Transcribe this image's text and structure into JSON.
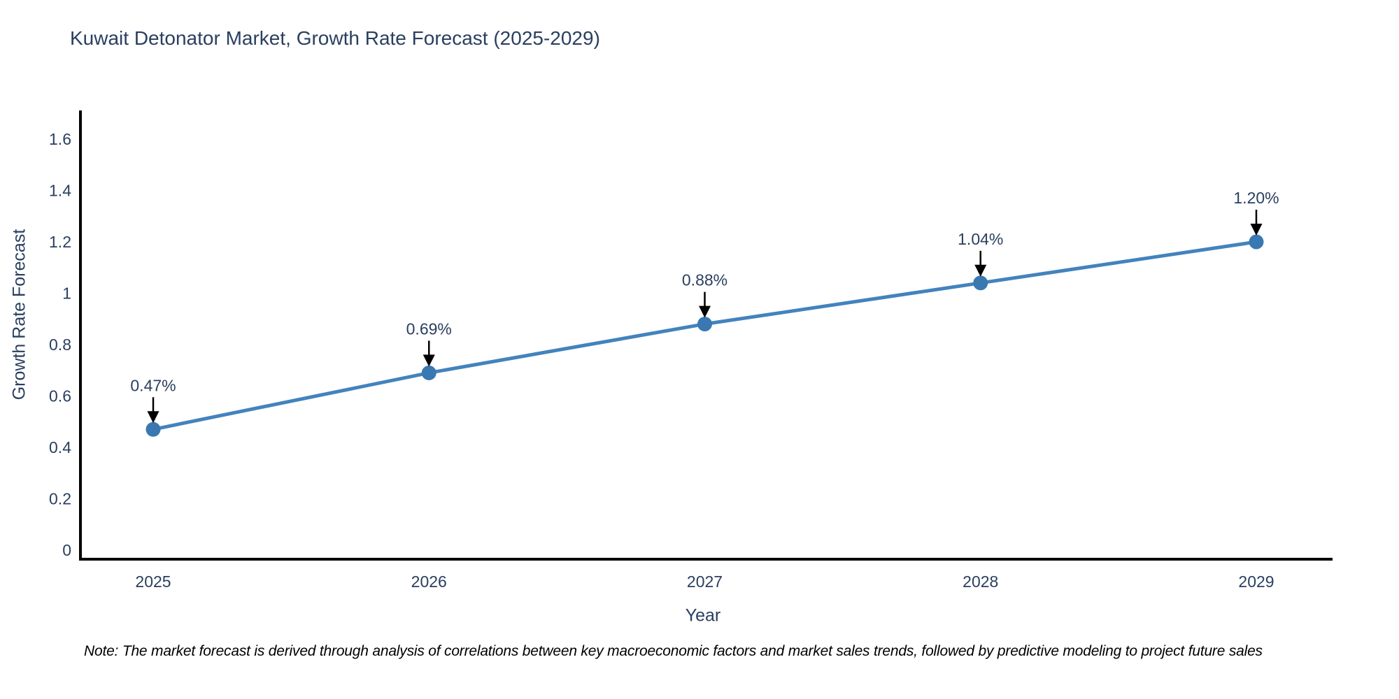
{
  "title": "Kuwait Detonator Market, Growth Rate Forecast (2025-2029)",
  "footnote": "Note: The market forecast is derived through analysis of correlations between key macroeconomic factors and market sales trends, followed by predictive modeling to project future sales",
  "chart_data": {
    "type": "line",
    "title": "Kuwait Detonator Market, Growth Rate Forecast (2025-2029)",
    "x": [
      "2025",
      "2026",
      "2027",
      "2028",
      "2029"
    ],
    "series": [
      {
        "name": "Growth Rate Forecast",
        "values": [
          0.47,
          0.69,
          0.88,
          1.04,
          1.2
        ]
      }
    ],
    "point_labels": [
      "0.47%",
      "0.69%",
      "0.88%",
      "1.04%",
      "1.20%"
    ],
    "xlabel": "Year",
    "ylabel": "Growth Rate Forecast",
    "ylim": [
      0,
      1.6
    ],
    "yticks": [
      0,
      0.2,
      0.4,
      0.6,
      0.8,
      1,
      1.2,
      1.4,
      1.6
    ],
    "grid": false,
    "legend": "none",
    "annotations": "black arrows pointing down from value labels to markers",
    "colors": {
      "line": "#4383bd",
      "marker": "#3a78b2",
      "text": "#2a3f5f",
      "axis": "#000000",
      "arrow": "#000000",
      "background": "#ffffff"
    }
  }
}
